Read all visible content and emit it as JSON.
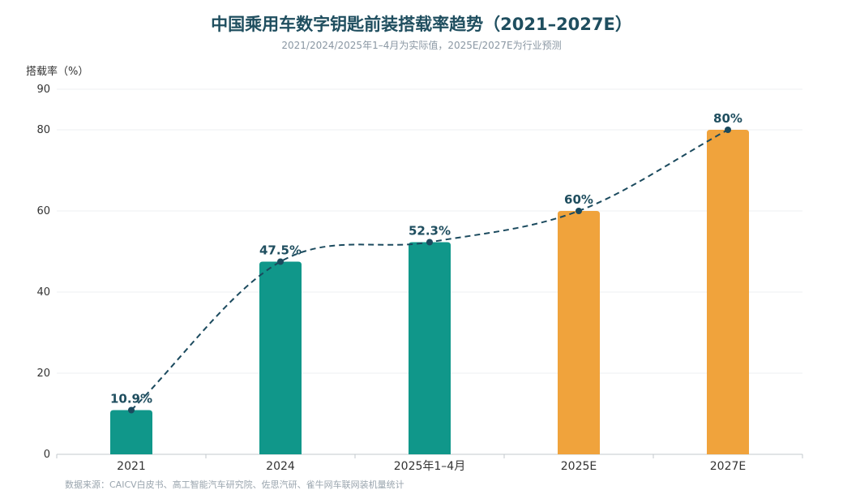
{
  "chart_data": {
    "type": "bar",
    "title": "中国乘用车数字钥匙前装搭载率趋势（2021–2027E）",
    "subtitle": "2021/2024/2025年1–4月为实际值，2025E/2027E为行业预测",
    "ylabel": "搭载率（%）",
    "xlabel": "",
    "categories": [
      "2021",
      "2024",
      "2025年1–4月",
      "2025E",
      "2027E"
    ],
    "values": [
      10.9,
      47.5,
      52.3,
      60,
      80
    ],
    "data_labels": [
      "10.9%",
      "47.5%",
      "52.3%",
      "60%",
      "80%"
    ],
    "status": [
      "actual",
      "actual",
      "actual",
      "forecast",
      "forecast"
    ],
    "ylim": [
      0,
      90
    ],
    "yticks": [
      0,
      20,
      40,
      60,
      80,
      90
    ],
    "grid": true,
    "trend_line": "dashed",
    "colors": {
      "actual": "#10978a",
      "forecast": "#f0a33c",
      "trend": "#1b4a5e",
      "title": "#1f4e5f"
    },
    "source": "数据来源：CAICV白皮书、高工智能汽车研究院、佐思汽研、雀牛网车联网装机量统计"
  }
}
